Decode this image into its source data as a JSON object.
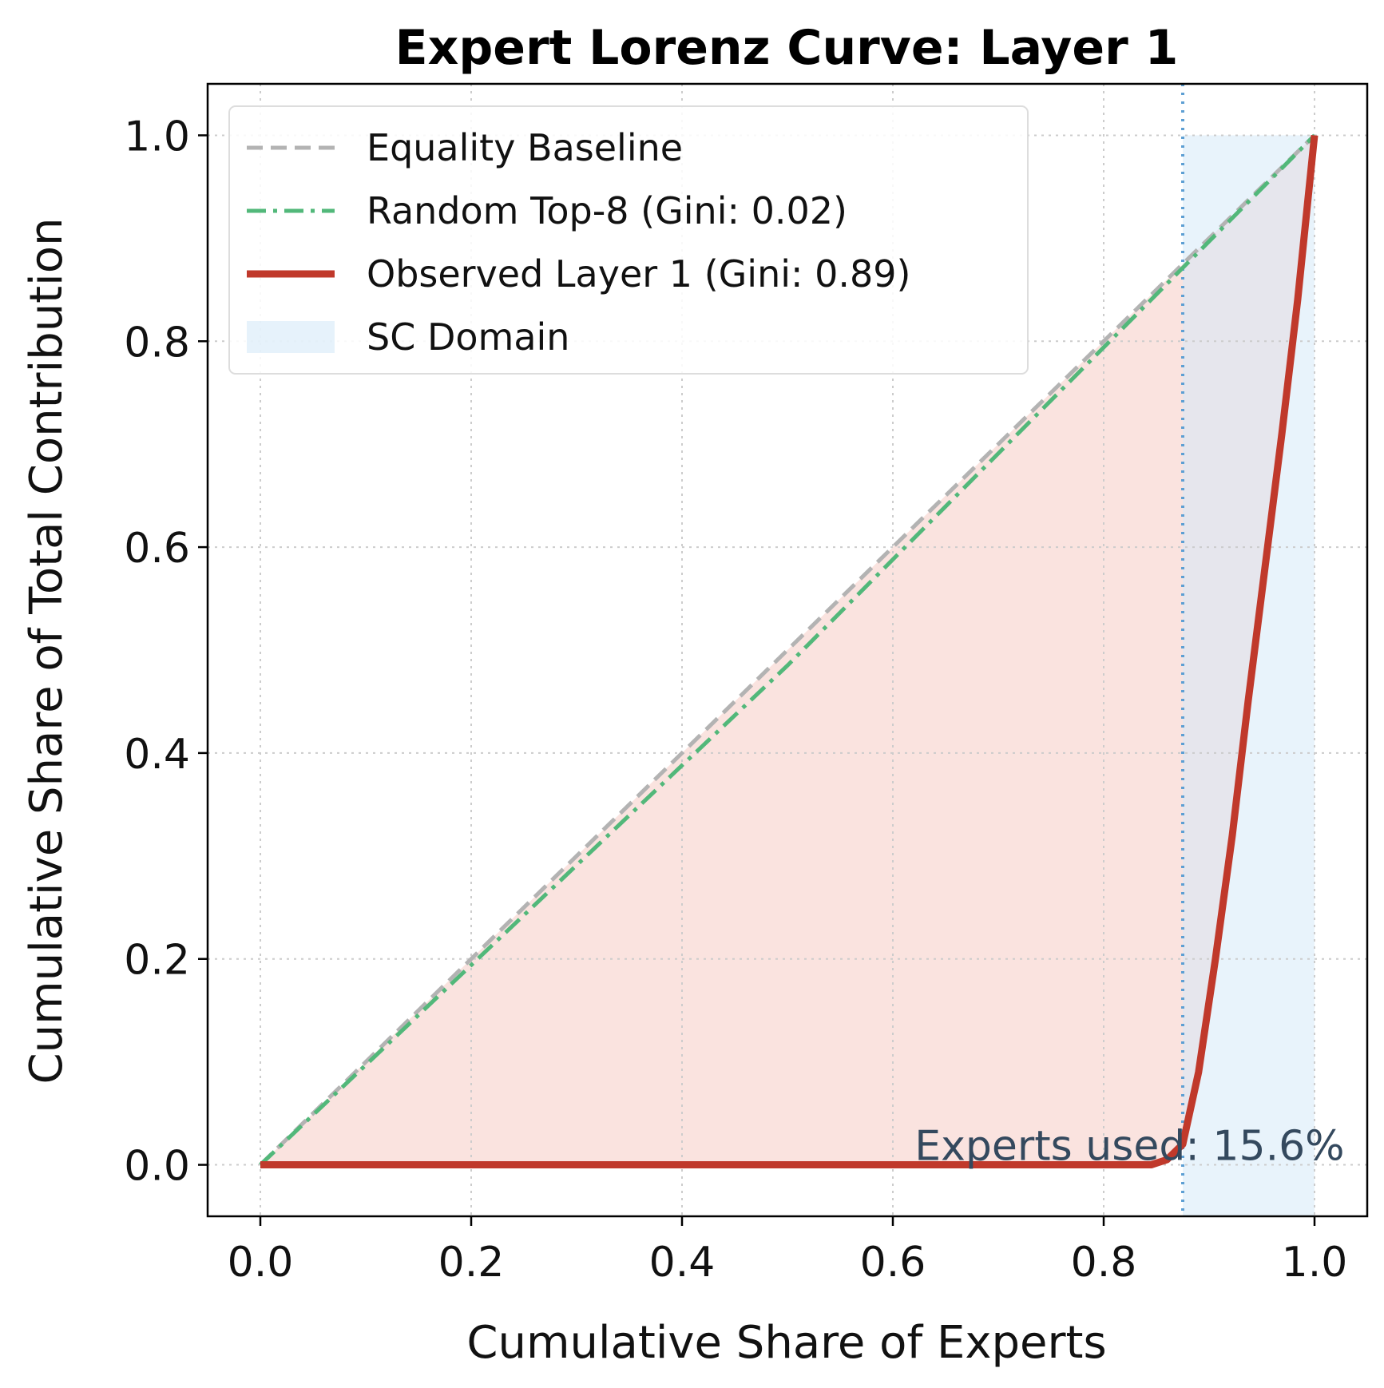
{
  "chart_data": {
    "type": "line",
    "title": "Expert Lorenz Curve: Layer 1",
    "xlabel": "Cumulative Share of Experts",
    "ylabel": "Cumulative Share of Total Contribution",
    "xlim": [
      -0.05,
      1.05
    ],
    "ylim": [
      -0.05,
      1.05
    ],
    "xticks": [
      0.0,
      0.2,
      0.4,
      0.6,
      0.8,
      1.0
    ],
    "yticks": [
      0.0,
      0.2,
      0.4,
      0.6,
      0.8,
      1.0
    ],
    "xtick_labels": [
      "0.0",
      "0.2",
      "0.4",
      "0.6",
      "0.8",
      "1.0"
    ],
    "ytick_labels": [
      "0.0",
      "0.2",
      "0.4",
      "0.6",
      "0.8",
      "1.0"
    ],
    "grid": true,
    "legend_position": "top-left",
    "series": [
      {
        "name": "Equality Baseline",
        "color": "#b3b3b3",
        "style": "dashed",
        "x": [
          0.0,
          1.0
        ],
        "y": [
          0.0,
          1.0
        ]
      },
      {
        "name": "Random Top-8 (Gini: 0.02)",
        "color": "#52b87a",
        "style": "dashdot",
        "x": [
          0.0,
          0.5,
          1.0
        ],
        "y": [
          0.0,
          0.485,
          1.0
        ]
      },
      {
        "name": "Observed Layer 1 (Gini: 0.89)",
        "color": "#c0392b",
        "style": "solid",
        "x": [
          0.0,
          0.845,
          0.86,
          0.875,
          0.89,
          0.906,
          0.922,
          0.937,
          0.953,
          0.969,
          0.984,
          1.0
        ],
        "y": [
          0.0,
          0.0,
          0.005,
          0.02,
          0.09,
          0.2,
          0.32,
          0.45,
          0.58,
          0.71,
          0.84,
          1.0
        ]
      }
    ],
    "shaded_region": {
      "name": "SC Domain",
      "color": "#d6eaf8",
      "x_start": 0.875,
      "x_end": 1.0,
      "y_top": 1.0
    },
    "gini_fill_color": "#f2b8b0",
    "vline": {
      "x": 0.875,
      "color": "#5d9fd3",
      "style": "dotted"
    },
    "annotation": {
      "text": "Experts used: 15.6%",
      "x": 1.03,
      "y": 0.0
    }
  }
}
